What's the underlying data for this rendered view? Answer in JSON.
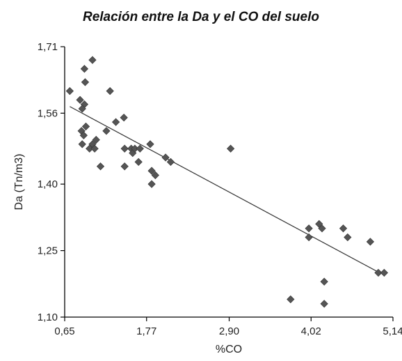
{
  "chart_data": {
    "type": "scatter",
    "title": "Relación entre la Da y el CO del suelo",
    "xlabel": "%CO",
    "ylabel": "Da (Tn/m3)",
    "xlim": [
      0.65,
      5.14
    ],
    "ylim": [
      1.1,
      1.71
    ],
    "x_ticks": [
      0.65,
      1.77,
      2.9,
      4.02,
      5.14
    ],
    "x_tick_labels": [
      "0,65",
      "1,77",
      "2,90",
      "4,02",
      "5,14"
    ],
    "y_ticks": [
      1.1,
      1.25,
      1.4,
      1.56,
      1.71
    ],
    "y_tick_labels": [
      "1,10",
      "1,25",
      "1,40",
      "1,56",
      "1,71"
    ],
    "grid": false,
    "marker_color": "#555555",
    "line_color": "#333333",
    "series": [
      {
        "points": [
          [
            0.72,
            1.61
          ],
          [
            0.86,
            1.59
          ],
          [
            0.92,
            1.66
          ],
          [
            0.93,
            1.63
          ],
          [
            1.03,
            1.68
          ],
          [
            0.92,
            1.58
          ],
          [
            0.89,
            1.57
          ],
          [
            0.88,
            1.52
          ],
          [
            0.91,
            1.51
          ],
          [
            0.94,
            1.53
          ],
          [
            0.89,
            1.49
          ],
          [
            0.99,
            1.48
          ],
          [
            1.03,
            1.49
          ],
          [
            1.06,
            1.48
          ],
          [
            1.08,
            1.5
          ],
          [
            1.14,
            1.44
          ],
          [
            1.22,
            1.52
          ],
          [
            1.27,
            1.61
          ],
          [
            1.35,
            1.54
          ],
          [
            1.46,
            1.55
          ],
          [
            1.47,
            1.48
          ],
          [
            1.47,
            1.44
          ],
          [
            1.56,
            1.48
          ],
          [
            1.58,
            1.47
          ],
          [
            1.61,
            1.48
          ],
          [
            1.66,
            1.45
          ],
          [
            1.68,
            1.48
          ],
          [
            1.82,
            1.49
          ],
          [
            1.84,
            1.43
          ],
          [
            1.84,
            1.4
          ],
          [
            1.89,
            1.42
          ],
          [
            2.03,
            1.46
          ],
          [
            2.1,
            1.45
          ],
          [
            2.92,
            1.48
          ],
          [
            3.74,
            1.14
          ],
          [
            3.99,
            1.3
          ],
          [
            3.99,
            1.28
          ],
          [
            4.13,
            1.31
          ],
          [
            4.17,
            1.3
          ],
          [
            4.2,
            1.18
          ],
          [
            4.2,
            1.13
          ],
          [
            4.46,
            1.3
          ],
          [
            4.52,
            1.28
          ],
          [
            4.83,
            1.27
          ],
          [
            4.94,
            1.2
          ],
          [
            5.02,
            1.2
          ]
        ]
      }
    ],
    "trendline": {
      "x": [
        0.72,
        4.98
      ],
      "y": [
        1.575,
        1.198
      ]
    }
  }
}
